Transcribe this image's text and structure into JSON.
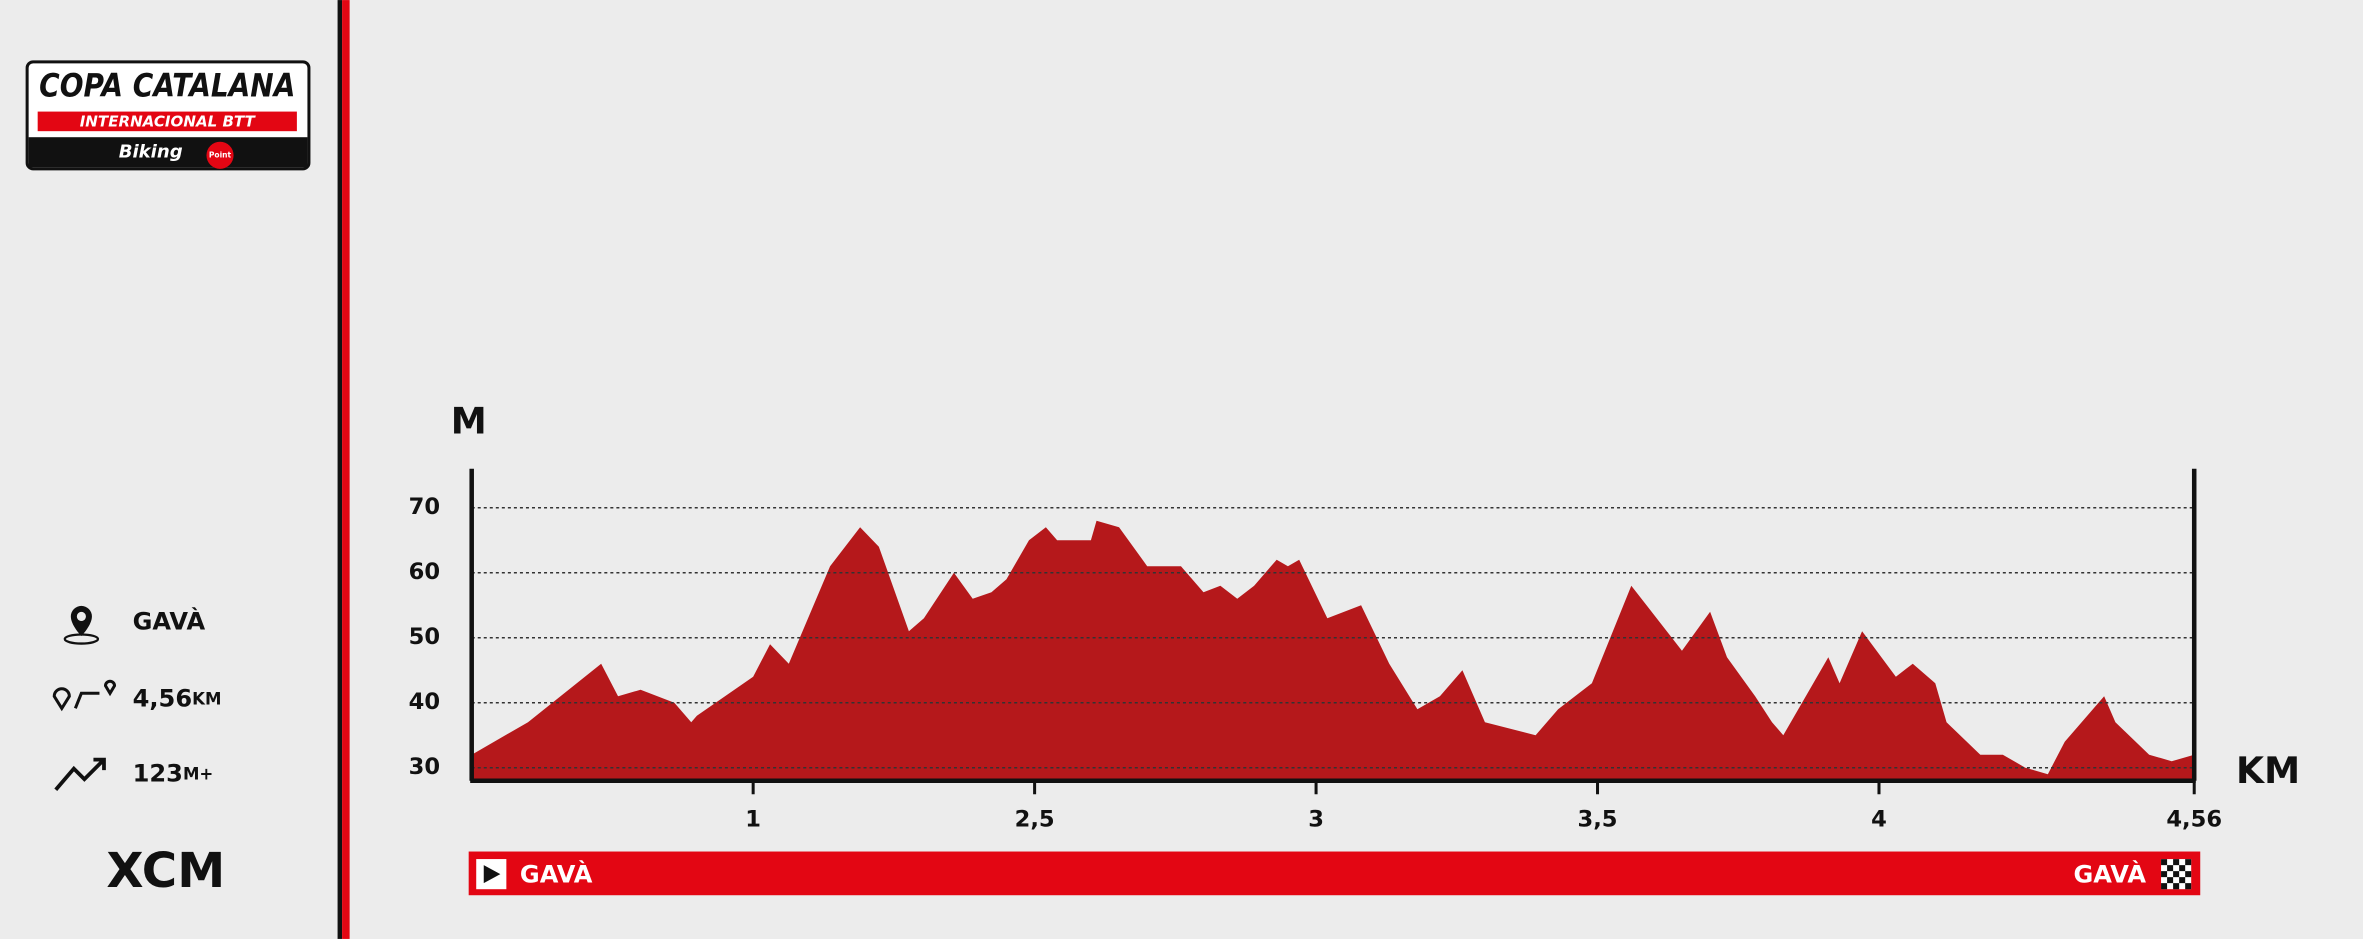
{
  "logo": {
    "title": "COPA CATALANA",
    "subtitle": "INTERNACIONAL BTT",
    "sponsor": "Biking",
    "sponsor_tag": "Point"
  },
  "info": {
    "location": "GAVÀ",
    "distance": "4,56",
    "distance_unit": "KM",
    "elevation_gain": "123",
    "elevation_unit": "M+",
    "category": "XCM"
  },
  "route": {
    "start": "GAVÀ",
    "finish": "GAVÀ"
  },
  "chart_data": {
    "type": "area",
    "color": "#b5181b",
    "y_label": "M",
    "x_label": "KM",
    "xlim": [
      0.5,
      4.56
    ],
    "xticks": [
      1,
      {
        "value": 2.5,
        "label": "2,5"
      },
      3,
      {
        "value": 3.5,
        "label": "3,5"
      },
      4,
      {
        "value": 4.56,
        "label": "4,56"
      }
    ],
    "ylim": [
      28,
      76
    ],
    "yticks": [
      30,
      40,
      50,
      60,
      70
    ],
    "grid": true,
    "x": [
      0.5,
      0.6,
      0.73,
      0.76,
      0.8,
      0.86,
      0.89,
      0.9,
      1.0,
      1.09,
      1.19,
      1.41,
      1.57,
      1.67,
      1.83,
      1.91,
      2.07,
      2.17,
      2.27,
      2.35,
      2.47,
      2.52,
      2.54,
      2.6,
      2.61,
      2.65,
      2.7,
      2.76,
      2.8,
      2.83,
      2.86,
      2.89,
      2.93,
      2.95,
      2.97,
      3.02,
      3.08,
      3.13,
      3.18,
      3.22,
      3.26,
      3.3,
      3.39,
      3.43,
      3.49,
      3.56,
      3.65,
      3.7,
      3.73,
      3.78,
      3.81,
      3.83,
      3.87,
      3.91,
      3.93,
      3.97,
      4.03,
      4.06,
      4.1,
      4.12,
      4.18,
      4.22,
      4.26,
      4.3,
      4.33,
      4.4,
      4.42,
      4.48,
      4.52,
      4.56
    ],
    "values": [
      32,
      37,
      46,
      41,
      42,
      40,
      37,
      38,
      44,
      49,
      46,
      61,
      67,
      64,
      51,
      53,
      60,
      56,
      57,
      59,
      65,
      67,
      65,
      65,
      68,
      67,
      61,
      61,
      57,
      58,
      56,
      58,
      62,
      61,
      62,
      53,
      55,
      46,
      39,
      41,
      45,
      37,
      35,
      39,
      43,
      58,
      48,
      54,
      47,
      41,
      37,
      35,
      41,
      47,
      43,
      51,
      44,
      46,
      43,
      37,
      32,
      32,
      30,
      29,
      34,
      41,
      37,
      32,
      31,
      32
    ]
  }
}
